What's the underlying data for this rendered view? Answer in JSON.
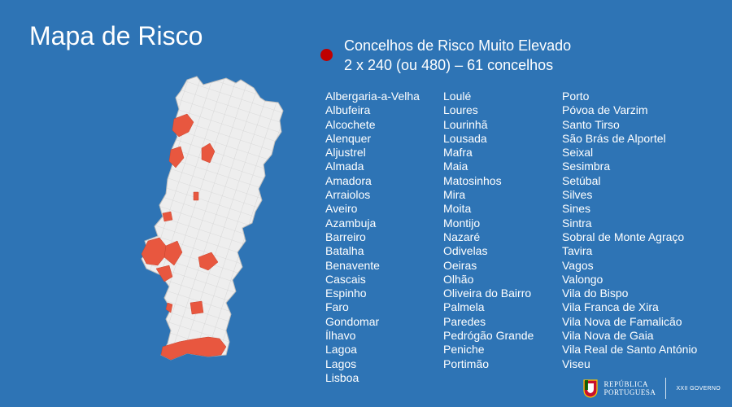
{
  "title": "Mapa de Risco",
  "legend": {
    "line1": "Concelhos de Risco Muito Elevado",
    "line2": "2 x 240 (ou 480) – 61 concelhos",
    "color": "#c00000"
  },
  "columns": [
    [
      "Albergaria-a-Velha",
      "Albufeira",
      "Alcochete",
      "Alenquer",
      "Aljustrel",
      "Almada",
      "Amadora",
      "Arraiolos",
      "Aveiro",
      "Azambuja",
      "Barreiro",
      "Batalha",
      "Benavente",
      "Cascais",
      "Espinho",
      "Faro",
      "Gondomar",
      "Ílhavo",
      "Lagoa",
      "Lagos",
      "Lisboa"
    ],
    [
      "Loulé",
      "Loures",
      "Lourinhã",
      "Lousada",
      "Mafra",
      "Maia",
      "Matosinhos",
      "Mira",
      "Moita",
      "Montijo",
      "Nazaré",
      "Odivelas",
      "Oeiras",
      "Olhão",
      "Oliveira do Bairro",
      "Palmela",
      "Paredes",
      "Pedrógão Grande",
      "Peniche",
      "Portimão"
    ],
    [
      "Porto",
      "Póvoa de Varzim",
      "Santo Tirso",
      "São Brás de Alportel",
      "Seixal",
      "Sesimbra",
      "Setúbal",
      "Silves",
      "Sines",
      "Sintra",
      "Sobral de Monte Agraço",
      "Tavira",
      "Vagos",
      "Valongo",
      "Vila do Bispo",
      "Vila Franca de Xira",
      "Vila Nova de Famalicão",
      "Vila Nova de Gaia",
      "Vila Real de Santo António",
      "Viseu"
    ]
  ],
  "map": {
    "base_color": "#eeeeee",
    "highlight_color": "#e8573f",
    "border_color": "#bbbbbb"
  },
  "footer": {
    "republica_line1": "REPÚBLICA",
    "republica_line2": "PORTUGUESA",
    "governo": "XXII GOVERNO"
  }
}
